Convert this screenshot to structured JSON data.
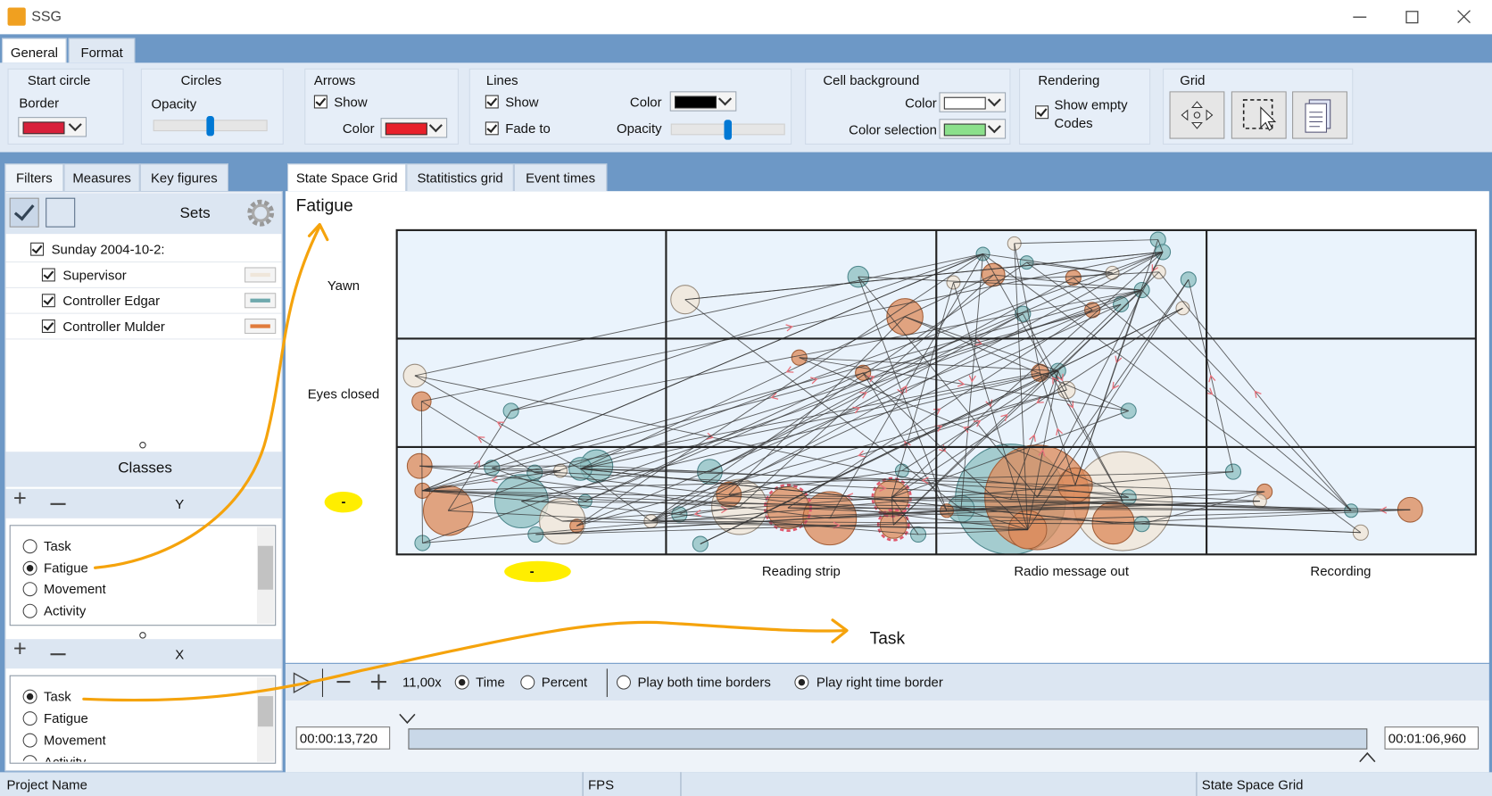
{
  "window": {
    "title": "SSG"
  },
  "ribbon": {
    "tabs": [
      "General",
      "Format"
    ],
    "start_circle": {
      "title": "Start circle",
      "border": "Border"
    },
    "circles": {
      "title": "Circles",
      "opacity": "Opacity"
    },
    "arrows": {
      "title": "Arrows",
      "show": "Show",
      "color": "Color"
    },
    "lines": {
      "title": "Lines",
      "show": "Show",
      "fade_to": "Fade to",
      "color": "Color",
      "opacity": "Opacity"
    },
    "cell_background": {
      "title": "Cell background",
      "color": "Color",
      "color_selection": "Color selection"
    },
    "rendering": {
      "title": "Rendering",
      "show_empty_codes": "Show empty Codes"
    },
    "grid": {
      "title": "Grid"
    }
  },
  "left_panel": {
    "tabs": [
      "Filters",
      "Measures",
      "Key figures"
    ],
    "sets": {
      "title": "Sets",
      "items": [
        {
          "label": "Sunday 2004-10-2:"
        },
        {
          "label": "Supervisor",
          "color": "#efe6da"
        },
        {
          "label": "Controller Edgar",
          "color": "#6fa9ad"
        },
        {
          "label": "Controller Mulder",
          "color": "#e07b3c"
        }
      ]
    },
    "classes": {
      "title": "Classes",
      "y_axis": {
        "label": "Y",
        "options": [
          "Task",
          "Fatigue",
          "Movement",
          "Activity"
        ],
        "selected": 1
      },
      "x_axis": {
        "label": "X",
        "options": [
          "Task",
          "Fatigue",
          "Movement",
          "Activity"
        ],
        "selected": 0
      }
    }
  },
  "main_tabs": [
    "State Space Grid",
    "Statitistics grid",
    "Event times"
  ],
  "grid": {
    "y_title": "Fatigue",
    "x_title": "Task",
    "rows": [
      "Yawn",
      "Eyes closed",
      "-"
    ],
    "columns": [
      "-",
      "Reading strip",
      "Radio message out",
      "Recording"
    ]
  },
  "playback": {
    "speed": "11,00x",
    "time_modes": [
      "Time",
      "Percent"
    ],
    "time_borders": [
      "Play both time borders",
      "Play right time border"
    ],
    "start_time": "00:00:13,720",
    "end_time": "00:01:06,960"
  },
  "status_bar": [
    "Project Name",
    "FPS",
    "State Space Grid"
  ]
}
